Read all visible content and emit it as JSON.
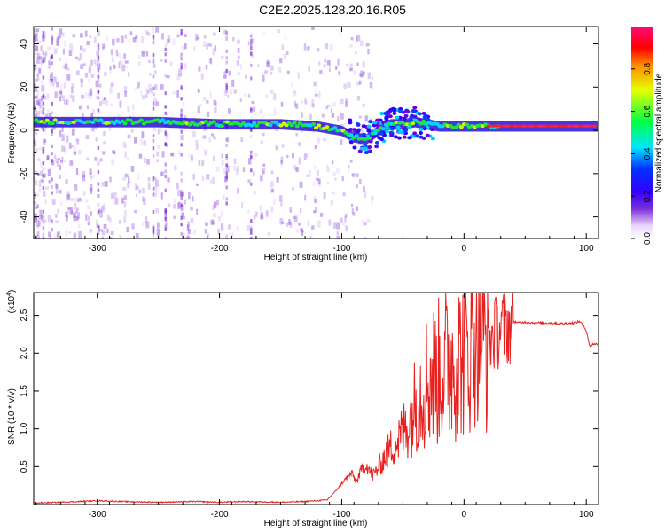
{
  "figure_title": "C2E2.2025.128.20.16.R05",
  "colors": {
    "axis": "#000000",
    "snr_line": "#e8211f",
    "spectrum_dots": "#7b2fd9",
    "colormap": [
      "#ffffff",
      "#5b00f0",
      "#0000ff",
      "#00e0ff",
      "#00ff00",
      "#ffff00",
      "#ff0000",
      "#ff0080"
    ]
  },
  "chart_data": [
    {
      "type": "heatmap",
      "title": "",
      "xlabel": "Height of straight line (km)",
      "ylabel": "Frequency (Hz)",
      "xlim": [
        -352,
        110
      ],
      "ylim": [
        -50,
        48
      ],
      "x_ticks": [
        -300,
        -200,
        -100,
        0,
        100
      ],
      "y_ticks": [
        -40,
        -20,
        0,
        20,
        40
      ],
      "colorbar": {
        "label": "Normalized spectral amplitude",
        "range": [
          0,
          1
        ],
        "ticks": [
          "0.0",
          "0.2",
          "0.4",
          "0.6",
          "0.8"
        ]
      },
      "ridge": {
        "x": [
          -352,
          -300,
          -250,
          -200,
          -150,
          -120,
          -100,
          -90,
          -80,
          -70,
          -60,
          -50,
          -40,
          -30,
          -20,
          -10,
          0,
          20,
          50,
          80,
          110
        ],
        "freq": [
          4,
          4,
          4,
          3,
          3,
          2,
          0,
          -3,
          -4,
          0,
          3,
          3,
          4,
          3,
          2,
          2,
          2,
          2,
          2,
          2,
          2
        ]
      }
    },
    {
      "type": "line",
      "title": "",
      "xlabel": "Height of straight line (km)",
      "ylabel": "SNR (10 * v/v)",
      "y_multiplier": "(x10",
      "y_multiplier_exp": "4",
      "y_multiplier_close": ")",
      "xlim": [
        -352,
        110
      ],
      "ylim": [
        0,
        2.8
      ],
      "x_ticks": [
        -300,
        -200,
        -100,
        0,
        100
      ],
      "y_ticks": [
        0.5,
        1.0,
        1.5,
        2.0,
        2.5
      ],
      "series": [
        {
          "x": [
            -352,
            -330,
            -300,
            -280,
            -250,
            -220,
            -200,
            -180,
            -150,
            -130,
            -112,
            -105,
            -98,
            -92,
            -88,
            -84,
            -80,
            -75,
            -70,
            -65,
            -60,
            -55,
            -50,
            -45,
            -40,
            -35,
            -30,
            -25,
            -20,
            -15,
            -10,
            -5,
            0,
            5,
            10,
            15,
            20,
            25,
            30,
            35,
            40,
            45,
            50,
            60,
            70,
            80,
            90,
            95,
            100,
            103,
            105,
            110
          ],
          "y": [
            0.02,
            0.03,
            0.05,
            0.04,
            0.03,
            0.04,
            0.03,
            0.04,
            0.03,
            0.04,
            0.06,
            0.18,
            0.32,
            0.42,
            0.3,
            0.46,
            0.55,
            0.38,
            0.5,
            0.65,
            0.78,
            0.85,
            1.0,
            1.15,
            1.4,
            1.6,
            1.75,
            1.8,
            1.85,
            1.95,
            2.0,
            2.05,
            2.1,
            2.25,
            2.6,
            2.4,
            2.2,
            2.3,
            2.38,
            2.4,
            2.42,
            2.4,
            2.41,
            2.4,
            2.4,
            2.39,
            2.4,
            2.42,
            2.3,
            2.08,
            2.12,
            2.12
          ],
          "noise_from": [
            -110,
            40
          ]
        }
      ]
    }
  ]
}
